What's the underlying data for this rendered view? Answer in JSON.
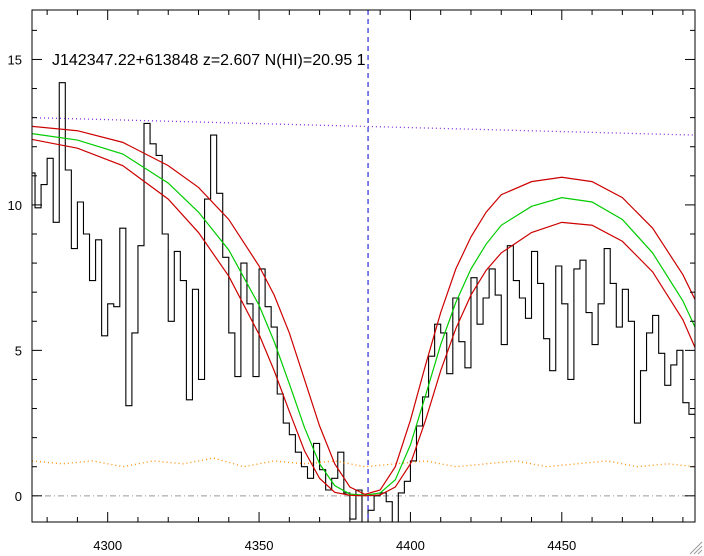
{
  "chart_data": {
    "type": "line",
    "title": "J142347.22+613848 z=2.607 N(HI)=20.95 1",
    "xlabel": "",
    "ylabel": "",
    "xlim": [
      4275,
      4494
    ],
    "ylim": [
      -0.9,
      16.7
    ],
    "x_ticks": [
      4300,
      4350,
      4400,
      4450
    ],
    "y_ticks": [
      0,
      5,
      10,
      15
    ],
    "grid": false,
    "legend": "none",
    "center_marker_x": 4386,
    "colors": {
      "flux": "#000000",
      "fit": "#00cc00",
      "fit_bounds": "#cc0000",
      "continuum": "#8a2be2",
      "error": "#ff8c00",
      "center_line": "#0000cc",
      "zero_line": "#999999"
    },
    "series": [
      {
        "style": "steps",
        "x": [
          4275,
          4277,
          4279,
          4281,
          4283,
          4285,
          4287,
          4289,
          4291,
          4293,
          4295,
          4297,
          4299,
          4301,
          4303,
          4305,
          4307,
          4309,
          4311,
          4313,
          4315,
          4317,
          4319,
          4321,
          4323,
          4325,
          4327,
          4329,
          4331,
          4333,
          4335,
          4337,
          4339,
          4341,
          4343,
          4345,
          4347,
          4349,
          4351,
          4353,
          4355,
          4357,
          4359,
          4361,
          4363,
          4365,
          4367,
          4369,
          4371,
          4373,
          4375,
          4377,
          4379,
          4381,
          4383,
          4385,
          4387,
          4389,
          4391,
          4393,
          4395,
          4397,
          4399,
          4401,
          4403,
          4405,
          4407,
          4409,
          4411,
          4413,
          4415,
          4417,
          4419,
          4421,
          4423,
          4425,
          4427,
          4429,
          4431,
          4433,
          4435,
          4437,
          4439,
          4441,
          4443,
          4445,
          4447,
          4449,
          4451,
          4453,
          4455,
          4457,
          4459,
          4461,
          4463,
          4465,
          4467,
          4469,
          4471,
          4473,
          4475,
          4477,
          4479,
          4481,
          4483,
          4485,
          4487,
          4489,
          4491,
          4493
        ],
        "values": [
          11.1,
          9.9,
          10.7,
          11.6,
          9.4,
          14.2,
          11.2,
          8.5,
          10.1,
          9.0,
          7.4,
          8.8,
          5.5,
          6.6,
          6.5,
          9.2,
          3.1,
          5.6,
          8.6,
          12.8,
          12.1,
          11.7,
          9.0,
          6.0,
          8.4,
          7.4,
          3.3,
          7.1,
          4.0,
          10.2,
          12.4,
          10.4,
          8.2,
          5.6,
          4.1,
          8.0,
          6.6,
          4.1,
          7.8,
          6.5,
          5.8,
          3.5,
          2.5,
          2.1,
          1.5,
          1.0,
          0.6,
          1.8,
          0.9,
          0.2,
          0.6,
          1.5,
          0.1,
          -0.8,
          0.2,
          -1.1,
          -0.5,
          0.0,
          0.1,
          -0.2,
          -0.9,
          0.1,
          0.5,
          1.2,
          2.4,
          3.4,
          4.8,
          5.9,
          5.6,
          4.2,
          6.8,
          5.3,
          4.4,
          7.5,
          5.9,
          6.8,
          7.8,
          6.9,
          5.2,
          8.6,
          7.4,
          6.8,
          6.1,
          8.4,
          7.3,
          5.4,
          4.3,
          7.9,
          6.6,
          4.0,
          7.8,
          8.1,
          6.3,
          5.2,
          6.6,
          8.5,
          7.3,
          5.8,
          7.1,
          6.0,
          2.5,
          4.3,
          5.6,
          6.2,
          4.9,
          3.8,
          4.5,
          5.0,
          3.2,
          2.8
        ]
      },
      {
        "style": "dotted",
        "x": [
          4275,
          4494
        ],
        "values": [
          13.0,
          12.4
        ]
      },
      {
        "style": "dotted",
        "x": [
          4275,
          4285,
          4295,
          4305,
          4315,
          4325,
          4335,
          4345,
          4355,
          4365,
          4375,
          4385,
          4395,
          4405,
          4415,
          4425,
          4435,
          4445,
          4455,
          4465,
          4475,
          4485,
          4494
        ],
        "values": [
          1.2,
          1.1,
          1.2,
          1.0,
          1.2,
          1.1,
          1.3,
          1.0,
          1.2,
          1.1,
          1.2,
          1.0,
          1.1,
          1.2,
          1.0,
          1.1,
          1.2,
          1.0,
          1.1,
          1.2,
          1.0,
          1.1,
          1.0
        ]
      },
      {
        "style": "line",
        "x": [
          4275,
          4290,
          4305,
          4320,
          4330,
          4340,
          4350,
          4355,
          4360,
          4365,
          4370,
          4375,
          4380,
          4385,
          4390,
          4395,
          4400,
          4405,
          4410,
          4415,
          4420,
          4425,
          4430,
          4440,
          4450,
          4460,
          4470,
          4480,
          4490,
          4494
        ],
        "values": [
          12.45,
          12.23,
          11.75,
          10.75,
          9.75,
          8.45,
          6.55,
          5.3,
          3.85,
          2.35,
          1.1,
          0.35,
          0.06,
          0.02,
          0.1,
          0.55,
          1.75,
          3.45,
          5.2,
          6.65,
          7.8,
          8.65,
          9.3,
          9.95,
          10.25,
          10.1,
          9.5,
          8.35,
          6.7,
          5.8
        ]
      },
      {
        "style": "line",
        "x": [
          4275,
          4290,
          4305,
          4320,
          4330,
          4340,
          4350,
          4355,
          4360,
          4365,
          4370,
          4375,
          4380,
          4385,
          4390,
          4395,
          4400,
          4405,
          4410,
          4415,
          4420,
          4425,
          4430,
          4440,
          4450,
          4460,
          4470,
          4480,
          4490,
          4494
        ],
        "values": [
          12.7,
          12.55,
          12.15,
          11.35,
          10.6,
          9.5,
          7.9,
          6.9,
          5.6,
          4.0,
          2.4,
          1.1,
          0.3,
          0.05,
          0.2,
          1.0,
          2.6,
          4.5,
          6.3,
          7.8,
          8.9,
          9.75,
          10.35,
          10.8,
          10.95,
          10.8,
          10.25,
          9.2,
          7.6,
          6.75
        ]
      },
      {
        "style": "line",
        "x": [
          4275,
          4290,
          4305,
          4320,
          4330,
          4340,
          4350,
          4355,
          4360,
          4365,
          4370,
          4375,
          4380,
          4385,
          4390,
          4395,
          4400,
          4405,
          4410,
          4415,
          4420,
          4425,
          4430,
          4440,
          4450,
          4460,
          4470,
          4480,
          4490,
          4494
        ],
        "values": [
          12.25,
          11.95,
          11.35,
          10.2,
          9.05,
          7.55,
          5.55,
          4.3,
          2.9,
          1.55,
          0.6,
          0.12,
          0.02,
          0.0,
          0.03,
          0.3,
          1.1,
          2.6,
          4.3,
          5.75,
          6.9,
          7.75,
          8.35,
          9.05,
          9.4,
          9.3,
          8.75,
          7.7,
          6.05,
          5.1
        ]
      }
    ]
  }
}
